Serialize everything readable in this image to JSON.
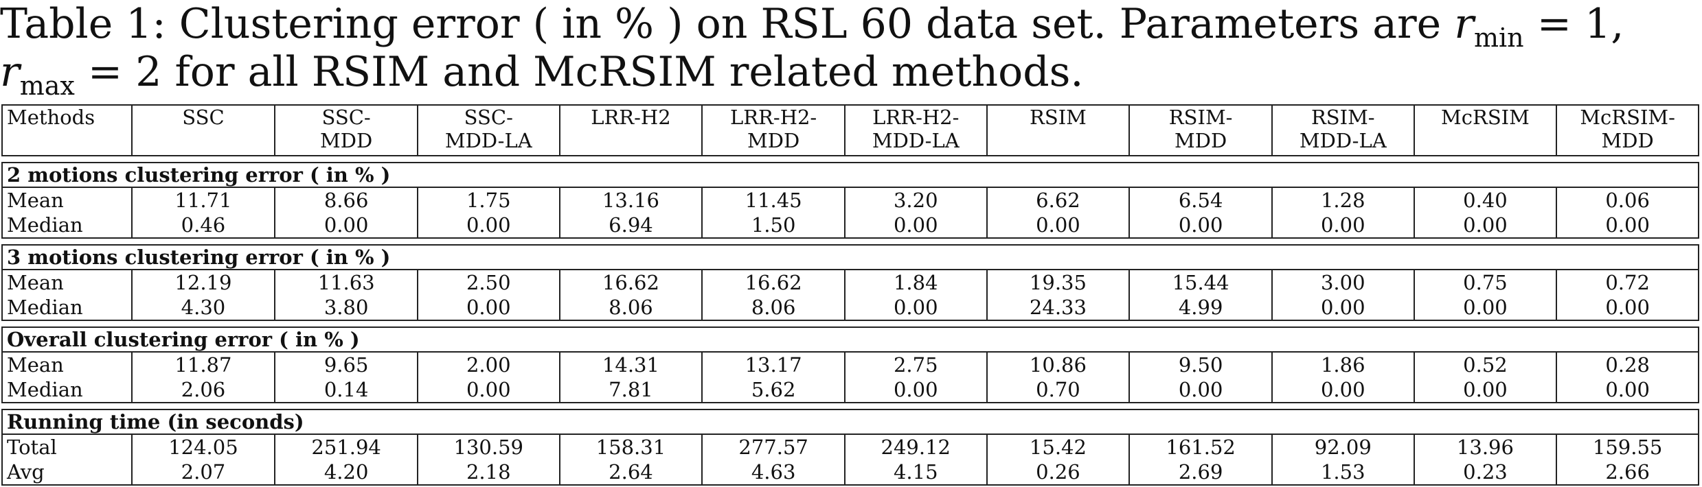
{
  "caption": {
    "prefix": "Table 1:",
    "text1": "Clustering error ( in % ) on RSL 60 data set. Parameters are",
    "rmin_sub": "min",
    "rmin_val": "= 1,",
    "rmax_sub": "max",
    "text2": "= 2 for all RSIM and McRSIM related methods."
  },
  "headers": [
    [
      "Methods"
    ],
    [
      "SSC"
    ],
    [
      "SSC-",
      "MDD"
    ],
    [
      "SSC-",
      "MDD-LA"
    ],
    [
      "LRR-H2"
    ],
    [
      "LRR-H2-",
      "MDD"
    ],
    [
      "LRR-H2-",
      "MDD-LA"
    ],
    [
      "RSIM"
    ],
    [
      "RSIM-",
      "MDD"
    ],
    [
      "RSIM-",
      "MDD-LA"
    ],
    [
      "McRSIM"
    ],
    [
      "McRSIM-",
      "MDD"
    ]
  ],
  "sections": [
    {
      "title": "2 motions clustering error ( in % )",
      "rows": [
        {
          "label": "Mean",
          "values": [
            "11.71",
            "8.66",
            "1.75",
            "13.16",
            "11.45",
            "3.20",
            "6.62",
            "6.54",
            "1.28",
            "0.40",
            "0.06"
          ]
        },
        {
          "label": "Median",
          "values": [
            "0.46",
            "0.00",
            "0.00",
            "6.94",
            "1.50",
            "0.00",
            "0.00",
            "0.00",
            "0.00",
            "0.00",
            "0.00"
          ]
        }
      ]
    },
    {
      "title": "3 motions clustering error ( in % )",
      "rows": [
        {
          "label": "Mean",
          "values": [
            "12.19",
            "11.63",
            "2.50",
            "16.62",
            "16.62",
            "1.84",
            "19.35",
            "15.44",
            "3.00",
            "0.75",
            "0.72"
          ]
        },
        {
          "label": "Median",
          "values": [
            "4.30",
            "3.80",
            "0.00",
            "8.06",
            "8.06",
            "0.00",
            "24.33",
            "4.99",
            "0.00",
            "0.00",
            "0.00"
          ]
        }
      ]
    },
    {
      "title": "Overall clustering error ( in % )",
      "rows": [
        {
          "label": "Mean",
          "values": [
            "11.87",
            "9.65",
            "2.00",
            "14.31",
            "13.17",
            "2.75",
            "10.86",
            "9.50",
            "1.86",
            "0.52",
            "0.28"
          ]
        },
        {
          "label": "Median",
          "values": [
            "2.06",
            "0.14",
            "0.00",
            "7.81",
            "5.62",
            "0.00",
            "0.70",
            "0.00",
            "0.00",
            "0.00",
            "0.00"
          ]
        }
      ]
    },
    {
      "title": "Running time (in seconds)",
      "rows": [
        {
          "label": "Total",
          "values": [
            "124.05",
            "251.94",
            "130.59",
            "158.31",
            "277.57",
            "249.12",
            "15.42",
            "161.52",
            "92.09",
            "13.96",
            "159.55"
          ]
        },
        {
          "label": "Avg",
          "values": [
            "2.07",
            "4.20",
            "2.18",
            "2.64",
            "4.63",
            "4.15",
            "0.26",
            "2.69",
            "1.53",
            "0.23",
            "2.66"
          ]
        }
      ]
    }
  ]
}
